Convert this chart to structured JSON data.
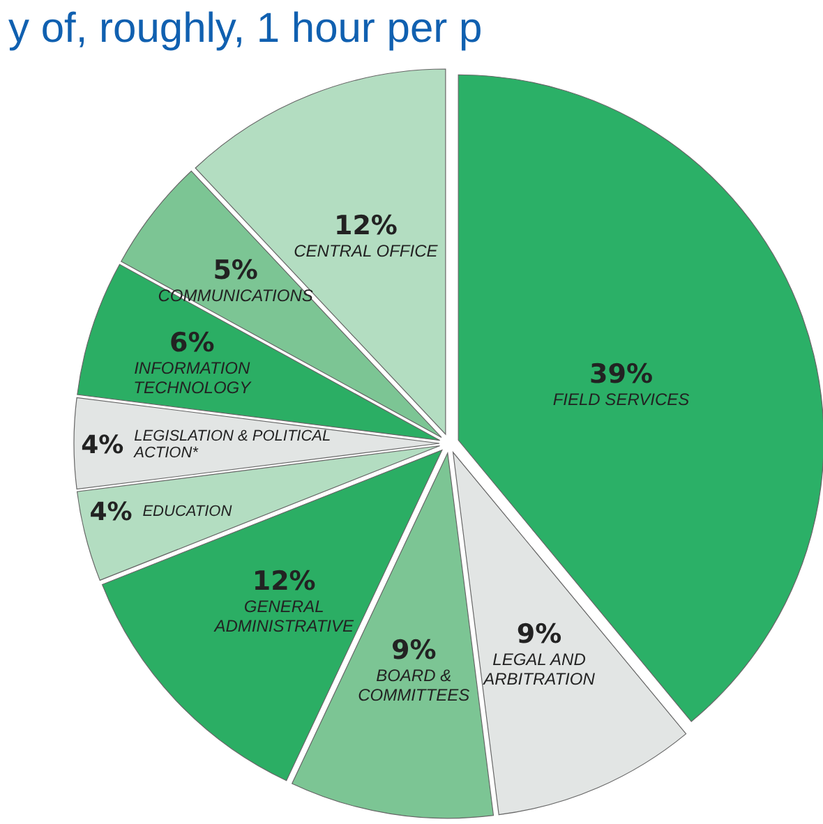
{
  "chart_data": {
    "type": "pie",
    "title": "y of, roughly, 1 hour per p",
    "categories": [
      "FIELD SERVICES",
      "LEGAL AND ARBITRATION",
      "BOARD & COMMITTEES",
      "GENERAL ADMINISTRATIVE",
      "EDUCATION",
      "LEGISLATION & POLITICAL ACTION*",
      "INFORMATION TECHNOLOGY",
      "COMMUNICATIONS",
      "CENTRAL OFFICE"
    ],
    "values": [
      39,
      9,
      9,
      12,
      4,
      4,
      6,
      5,
      12
    ],
    "colors": [
      "#2bb067",
      "#e2e5e4",
      "#7cc594",
      "#2bae64",
      "#b3ddc1",
      "#e2e5e4",
      "#2bae64",
      "#7cc594",
      "#b3ddc1"
    ],
    "value_labels": [
      "39%",
      "9%",
      "9%",
      "12%",
      "4%",
      "4%",
      "6%",
      "5%",
      "12%"
    ]
  }
}
